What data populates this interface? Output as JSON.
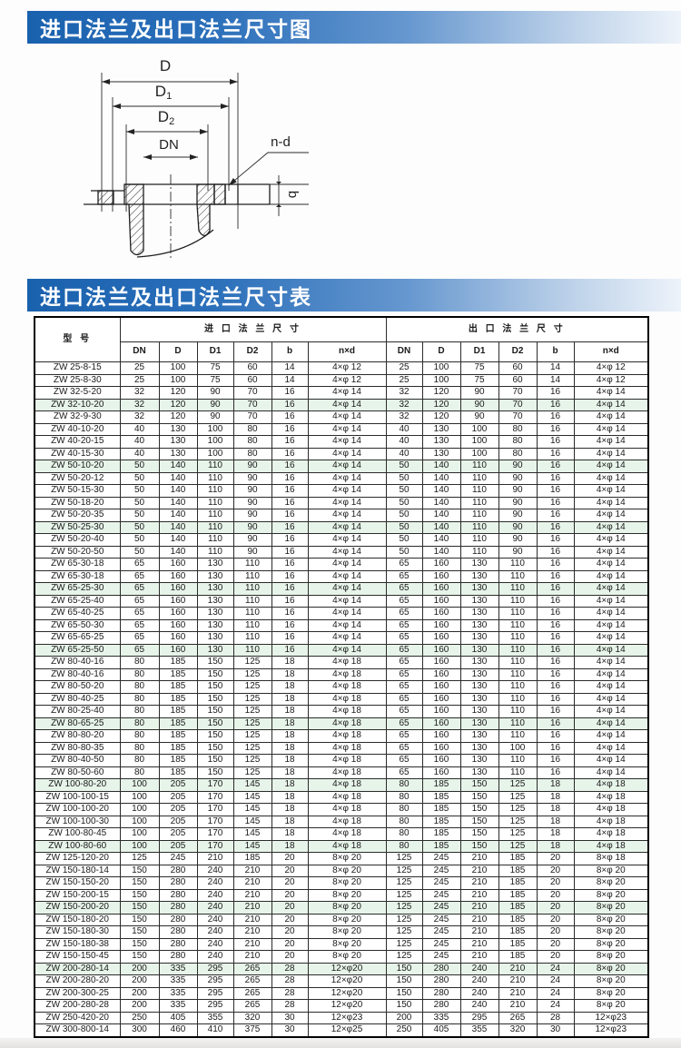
{
  "header1": {
    "title": "进口法兰及出口法兰尺寸图"
  },
  "header2": {
    "title": "进口法兰及出口法兰尺寸表"
  },
  "colors": {
    "bar_blue": "#1a61ae",
    "highlight_green": "#e7f4e9",
    "line_black": "#2b2b2b"
  },
  "diagram": {
    "label_d": "D",
    "label_d1_main": "D",
    "label_d1_sub": "1",
    "label_d2_main": "D",
    "label_d2_sub": "2",
    "label_dn": "DN",
    "label_nd": "n-d",
    "label_b": "b"
  },
  "table": {
    "col_model": "型  号",
    "group_inlet": "进 口 法 兰 尺 寸",
    "group_outlet": "出 口 法 兰 尺 寸",
    "subheaders": [
      "DN",
      "D",
      "D1",
      "D2",
      "b",
      "n×d"
    ],
    "rows": [
      {
        "m": "ZW 25-8-15",
        "i": [
          "25",
          "100",
          "75",
          "60",
          "14",
          "4×φ 12"
        ],
        "o": [
          "25",
          "100",
          "75",
          "60",
          "14",
          "4×φ 12"
        ],
        "h": false
      },
      {
        "m": "ZW 25-8-30",
        "i": [
          "25",
          "100",
          "75",
          "60",
          "14",
          "4×φ 12"
        ],
        "o": [
          "25",
          "100",
          "75",
          "60",
          "14",
          "4×φ 12"
        ],
        "h": false
      },
      {
        "m": "ZW 32-5-20",
        "i": [
          "32",
          "120",
          "90",
          "70",
          "16",
          "4×φ 14"
        ],
        "o": [
          "32",
          "120",
          "90",
          "70",
          "16",
          "4×φ 14"
        ],
        "h": false
      },
      {
        "m": "ZW 32-10-20",
        "i": [
          "32",
          "120",
          "90",
          "70",
          "16",
          "4×φ 14"
        ],
        "o": [
          "32",
          "120",
          "90",
          "70",
          "16",
          "4×φ 14"
        ],
        "h": true
      },
      {
        "m": "ZW 32-9-30",
        "i": [
          "32",
          "120",
          "90",
          "70",
          "16",
          "4×φ 14"
        ],
        "o": [
          "32",
          "120",
          "90",
          "70",
          "16",
          "4×φ 14"
        ],
        "h": false
      },
      {
        "m": "ZW 40-10-20",
        "i": [
          "40",
          "130",
          "100",
          "80",
          "16",
          "4×φ 14"
        ],
        "o": [
          "40",
          "130",
          "100",
          "80",
          "16",
          "4×φ 14"
        ],
        "h": false
      },
      {
        "m": "ZW 40-20-15",
        "i": [
          "40",
          "130",
          "100",
          "80",
          "16",
          "4×φ 14"
        ],
        "o": [
          "40",
          "130",
          "100",
          "80",
          "16",
          "4×φ 14"
        ],
        "h": false
      },
      {
        "m": "ZW 40-15-30",
        "i": [
          "40",
          "130",
          "100",
          "80",
          "16",
          "4×φ 14"
        ],
        "o": [
          "40",
          "130",
          "100",
          "80",
          "16",
          "4×φ 14"
        ],
        "h": false
      },
      {
        "m": "ZW 50-10-20",
        "i": [
          "50",
          "140",
          "110",
          "90",
          "16",
          "4×φ 14"
        ],
        "o": [
          "50",
          "140",
          "110",
          "90",
          "16",
          "4×φ 14"
        ],
        "h": true
      },
      {
        "m": "ZW 50-20-12",
        "i": [
          "50",
          "140",
          "110",
          "90",
          "16",
          "4×φ 14"
        ],
        "o": [
          "50",
          "140",
          "110",
          "90",
          "16",
          "4×φ 14"
        ],
        "h": false
      },
      {
        "m": "ZW 50-15-30",
        "i": [
          "50",
          "140",
          "110",
          "90",
          "16",
          "4×φ 14"
        ],
        "o": [
          "50",
          "140",
          "110",
          "90",
          "16",
          "4×φ 14"
        ],
        "h": false
      },
      {
        "m": "ZW 50-18-20",
        "i": [
          "50",
          "140",
          "110",
          "90",
          "16",
          "4×φ 14"
        ],
        "o": [
          "50",
          "140",
          "110",
          "90",
          "16",
          "4×φ 14"
        ],
        "h": false
      },
      {
        "m": "ZW 50-20-35",
        "i": [
          "50",
          "140",
          "110",
          "90",
          "16",
          "4×φ 14"
        ],
        "o": [
          "50",
          "140",
          "110",
          "90",
          "16",
          "4×φ 14"
        ],
        "h": false
      },
      {
        "m": "ZW 50-25-30",
        "i": [
          "50",
          "140",
          "110",
          "90",
          "16",
          "4×φ 14"
        ],
        "o": [
          "50",
          "140",
          "110",
          "90",
          "16",
          "4×φ 14"
        ],
        "h": true
      },
      {
        "m": "ZW 50-20-40",
        "i": [
          "50",
          "140",
          "110",
          "90",
          "16",
          "4×φ 14"
        ],
        "o": [
          "50",
          "140",
          "110",
          "90",
          "16",
          "4×φ 14"
        ],
        "h": false
      },
      {
        "m": "ZW 50-20-50",
        "i": [
          "50",
          "140",
          "110",
          "90",
          "16",
          "4×φ 14"
        ],
        "o": [
          "50",
          "140",
          "110",
          "90",
          "16",
          "4×φ 14"
        ],
        "h": false
      },
      {
        "m": "ZW 65-30-18",
        "i": [
          "65",
          "160",
          "130",
          "110",
          "16",
          "4×φ 14"
        ],
        "o": [
          "65",
          "160",
          "130",
          "110",
          "16",
          "4×φ 14"
        ],
        "h": false
      },
      {
        "m": "ZW 65-30-18",
        "i": [
          "65",
          "160",
          "130",
          "110",
          "16",
          "4×φ 14"
        ],
        "o": [
          "65",
          "160",
          "130",
          "110",
          "16",
          "4×φ 14"
        ],
        "h": false
      },
      {
        "m": "ZW 65-25-30",
        "i": [
          "65",
          "160",
          "130",
          "110",
          "16",
          "4×φ 14"
        ],
        "o": [
          "65",
          "160",
          "130",
          "110",
          "16",
          "4×φ 14"
        ],
        "h": true
      },
      {
        "m": "ZW 65-25-40",
        "i": [
          "65",
          "160",
          "130",
          "110",
          "16",
          "4×φ 14"
        ],
        "o": [
          "65",
          "160",
          "130",
          "110",
          "16",
          "4×φ 14"
        ],
        "h": false
      },
      {
        "m": "ZW 65-40-25",
        "i": [
          "65",
          "160",
          "130",
          "110",
          "16",
          "4×φ 14"
        ],
        "o": [
          "65",
          "160",
          "130",
          "110",
          "16",
          "4×φ 14"
        ],
        "h": false
      },
      {
        "m": "ZW 65-50-30",
        "i": [
          "65",
          "160",
          "130",
          "110",
          "16",
          "4×φ 14"
        ],
        "o": [
          "65",
          "160",
          "130",
          "110",
          "16",
          "4×φ 14"
        ],
        "h": false
      },
      {
        "m": "ZW 65-65-25",
        "i": [
          "65",
          "160",
          "130",
          "110",
          "16",
          "4×φ 14"
        ],
        "o": [
          "65",
          "160",
          "130",
          "110",
          "16",
          "4×φ 14"
        ],
        "h": false
      },
      {
        "m": "ZW 65-25-50",
        "i": [
          "65",
          "160",
          "130",
          "110",
          "16",
          "4×φ 14"
        ],
        "o": [
          "65",
          "160",
          "130",
          "110",
          "16",
          "4×φ 14"
        ],
        "h": true
      },
      {
        "m": "ZW 80-40-16",
        "i": [
          "80",
          "185",
          "150",
          "125",
          "18",
          "4×φ 18"
        ],
        "o": [
          "65",
          "160",
          "130",
          "110",
          "16",
          "4×φ 14"
        ],
        "h": false
      },
      {
        "m": "ZW 80-40-16",
        "i": [
          "80",
          "185",
          "150",
          "125",
          "18",
          "4×φ 18"
        ],
        "o": [
          "65",
          "160",
          "130",
          "110",
          "16",
          "4×φ 14"
        ],
        "h": false
      },
      {
        "m": "ZW 80-50-20",
        "i": [
          "80",
          "185",
          "150",
          "125",
          "18",
          "4×φ 18"
        ],
        "o": [
          "65",
          "160",
          "130",
          "110",
          "16",
          "4×φ 14"
        ],
        "h": false
      },
      {
        "m": "ZW 80-40-25",
        "i": [
          "80",
          "185",
          "150",
          "125",
          "18",
          "4×φ 18"
        ],
        "o": [
          "65",
          "160",
          "130",
          "110",
          "16",
          "4×φ 14"
        ],
        "h": false
      },
      {
        "m": "ZW 80-25-40",
        "i": [
          "80",
          "185",
          "150",
          "125",
          "18",
          "4×φ 18"
        ],
        "o": [
          "65",
          "160",
          "130",
          "110",
          "16",
          "4×φ 14"
        ],
        "h": false
      },
      {
        "m": "ZW 80-65-25",
        "i": [
          "80",
          "185",
          "150",
          "125",
          "18",
          "4×φ 18"
        ],
        "o": [
          "65",
          "160",
          "130",
          "110",
          "16",
          "4×φ 14"
        ],
        "h": true
      },
      {
        "m": "ZW 80-80-20",
        "i": [
          "80",
          "185",
          "150",
          "125",
          "18",
          "4×φ 18"
        ],
        "o": [
          "65",
          "160",
          "130",
          "110",
          "16",
          "4×φ 14"
        ],
        "h": false
      },
      {
        "m": "ZW 80-80-35",
        "i": [
          "80",
          "185",
          "150",
          "125",
          "18",
          "4×φ 18"
        ],
        "o": [
          "65",
          "160",
          "130",
          "100",
          "16",
          "4×φ 14"
        ],
        "h": false
      },
      {
        "m": "ZW 80-40-50",
        "i": [
          "80",
          "185",
          "150",
          "125",
          "18",
          "4×φ 18"
        ],
        "o": [
          "65",
          "160",
          "130",
          "110",
          "16",
          "4×φ 14"
        ],
        "h": false
      },
      {
        "m": "ZW 80-50-60",
        "i": [
          "80",
          "185",
          "150",
          "125",
          "18",
          "4×φ 18"
        ],
        "o": [
          "65",
          "160",
          "130",
          "110",
          "16",
          "4×φ 14"
        ],
        "h": false
      },
      {
        "m": "ZW 100-80-20",
        "i": [
          "100",
          "205",
          "170",
          "145",
          "18",
          "4×φ 18"
        ],
        "o": [
          "80",
          "185",
          "150",
          "125",
          "18",
          "4×φ 18"
        ],
        "h": true
      },
      {
        "m": "ZW 100-100-15",
        "i": [
          "100",
          "205",
          "170",
          "145",
          "18",
          "4×φ 18"
        ],
        "o": [
          "80",
          "185",
          "150",
          "125",
          "18",
          "4×φ 18"
        ],
        "h": false
      },
      {
        "m": "ZW 100-100-20",
        "i": [
          "100",
          "205",
          "170",
          "145",
          "18",
          "4×φ 18"
        ],
        "o": [
          "80",
          "185",
          "150",
          "125",
          "18",
          "4×φ 18"
        ],
        "h": false
      },
      {
        "m": "ZW 100-100-30",
        "i": [
          "100",
          "205",
          "170",
          "145",
          "18",
          "4×φ 18"
        ],
        "o": [
          "80",
          "185",
          "150",
          "125",
          "18",
          "4×φ 18"
        ],
        "h": false
      },
      {
        "m": "ZW 100-80-45",
        "i": [
          "100",
          "205",
          "170",
          "145",
          "18",
          "4×φ 18"
        ],
        "o": [
          "80",
          "185",
          "150",
          "125",
          "18",
          "4×φ 18"
        ],
        "h": false
      },
      {
        "m": "ZW 100-80-60",
        "i": [
          "100",
          "205",
          "170",
          "145",
          "18",
          "4×φ 18"
        ],
        "o": [
          "80",
          "185",
          "150",
          "125",
          "18",
          "4×φ 18"
        ],
        "h": true
      },
      {
        "m": "ZW 125-120-20",
        "i": [
          "125",
          "245",
          "210",
          "185",
          "20",
          "8×φ 20"
        ],
        "o": [
          "125",
          "245",
          "210",
          "185",
          "20",
          "8×φ 18"
        ],
        "h": false
      },
      {
        "m": "ZW 150-180-14",
        "i": [
          "150",
          "280",
          "240",
          "210",
          "20",
          "8×φ 20"
        ],
        "o": [
          "125",
          "245",
          "210",
          "185",
          "20",
          "8×φ 20"
        ],
        "h": false
      },
      {
        "m": "ZW 150-150-20",
        "i": [
          "150",
          "280",
          "240",
          "210",
          "20",
          "8×φ 20"
        ],
        "o": [
          "125",
          "245",
          "210",
          "185",
          "20",
          "8×φ 20"
        ],
        "h": false
      },
      {
        "m": "ZW 150-200-15",
        "i": [
          "150",
          "280",
          "240",
          "210",
          "20",
          "8×φ 20"
        ],
        "o": [
          "125",
          "245",
          "210",
          "185",
          "20",
          "8×φ 20"
        ],
        "h": false
      },
      {
        "m": "ZW 150-200-20",
        "i": [
          "150",
          "280",
          "240",
          "210",
          "20",
          "8×φ 20"
        ],
        "o": [
          "125",
          "245",
          "210",
          "185",
          "20",
          "8×φ 20"
        ],
        "h": true
      },
      {
        "m": "ZW 150-180-20",
        "i": [
          "150",
          "280",
          "240",
          "210",
          "20",
          "8×φ 20"
        ],
        "o": [
          "125",
          "245",
          "210",
          "185",
          "20",
          "8×φ 20"
        ],
        "h": false
      },
      {
        "m": "ZW 150-180-30",
        "i": [
          "150",
          "280",
          "240",
          "210",
          "20",
          "8×φ 20"
        ],
        "o": [
          "125",
          "245",
          "210",
          "185",
          "20",
          "8×φ 20"
        ],
        "h": false
      },
      {
        "m": "ZW 150-180-38",
        "i": [
          "150",
          "280",
          "240",
          "210",
          "20",
          "8×φ 20"
        ],
        "o": [
          "125",
          "245",
          "210",
          "185",
          "20",
          "8×φ 20"
        ],
        "h": false
      },
      {
        "m": "ZW 150-150-45",
        "i": [
          "150",
          "280",
          "240",
          "210",
          "20",
          "8×φ 20"
        ],
        "o": [
          "125",
          "245",
          "210",
          "185",
          "20",
          "8×φ 20"
        ],
        "h": false
      },
      {
        "m": "ZW 200-280-14",
        "i": [
          "200",
          "335",
          "295",
          "265",
          "28",
          "12×φ20"
        ],
        "o": [
          "150",
          "280",
          "240",
          "210",
          "24",
          "8×φ 20"
        ],
        "h": true
      },
      {
        "m": "ZW 200-280-20",
        "i": [
          "200",
          "335",
          "295",
          "265",
          "28",
          "12×φ20"
        ],
        "o": [
          "150",
          "280",
          "240",
          "210",
          "24",
          "8×φ 20"
        ],
        "h": false
      },
      {
        "m": "ZW 200-300-25",
        "i": [
          "200",
          "335",
          "295",
          "265",
          "28",
          "12×φ20"
        ],
        "o": [
          "150",
          "280",
          "240",
          "210",
          "24",
          "8×φ 20"
        ],
        "h": false
      },
      {
        "m": "ZW 200-280-28",
        "i": [
          "200",
          "335",
          "295",
          "265",
          "28",
          "12×φ20"
        ],
        "o": [
          "150",
          "280",
          "240",
          "210",
          "24",
          "8×φ 20"
        ],
        "h": false
      },
      {
        "m": "ZW 250-420-20",
        "i": [
          "250",
          "405",
          "355",
          "320",
          "30",
          "12×φ23"
        ],
        "o": [
          "200",
          "335",
          "295",
          "265",
          "28",
          "12×φ23"
        ],
        "h": false
      },
      {
        "m": "ZW 300-800-14",
        "i": [
          "300",
          "460",
          "410",
          "375",
          "30",
          "12×φ25"
        ],
        "o": [
          "250",
          "405",
          "355",
          "320",
          "30",
          "12×φ23"
        ],
        "h": false
      }
    ]
  }
}
